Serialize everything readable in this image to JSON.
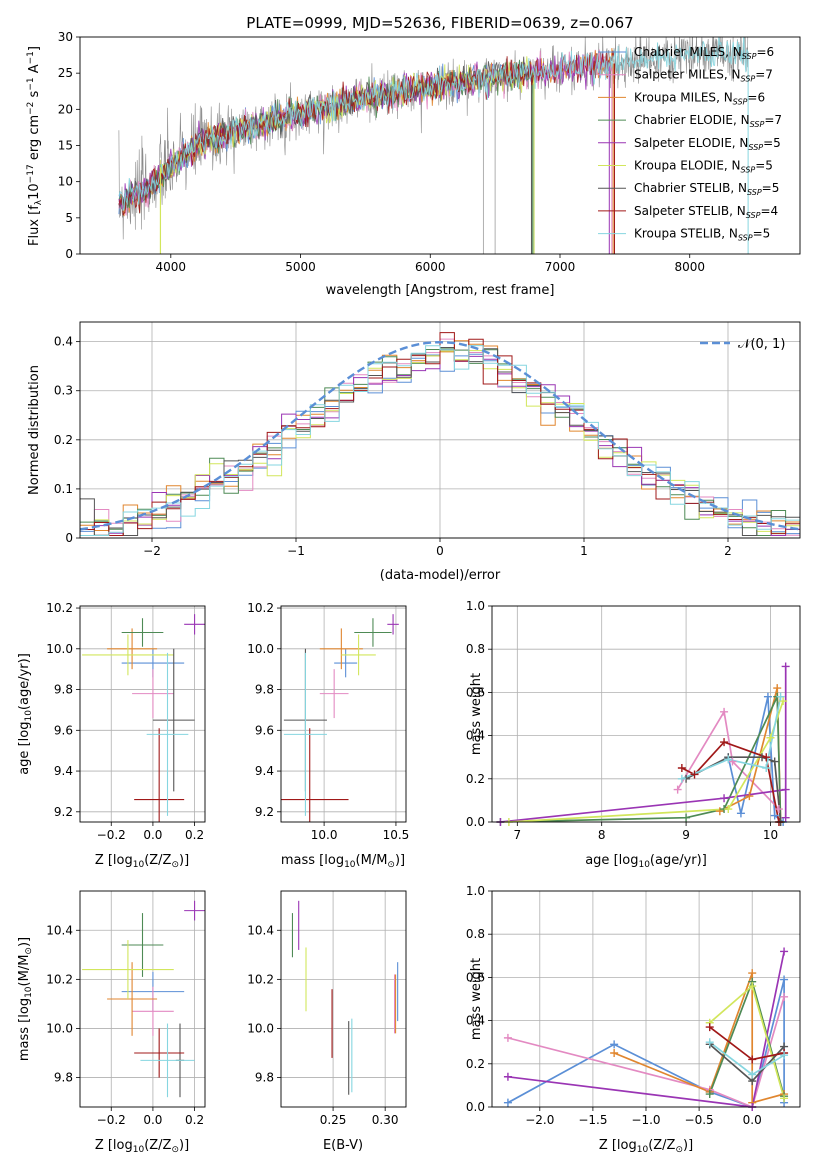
{
  "colors": {
    "chab_miles": "#5b8fd6",
    "salp_miles": "#e38ac2",
    "krou_miles": "#e0862f",
    "chab_elod": "#4e8a55",
    "salp_elod": "#9a35b4",
    "krou_elod": "#d2e65c",
    "chab_stel": "#555555",
    "salp_stel": "#a01818",
    "krou_stel": "#86d6e0",
    "grid": "#b0b0b0",
    "gauss": "#5b8fd6"
  },
  "chart_data": [
    {
      "id": "spectrum",
      "type": "line",
      "title": "PLATE=0999, MJD=52636, FIBERID=0639, z=0.067",
      "xlabel": "wavelength [Angstrom, rest frame]",
      "ylabel_parts": [
        "Flux [f",
        "λ",
        "10",
        "−17",
        " erg cm",
        "−2",
        " s",
        "−1",
        " A",
        "−1",
        "]"
      ],
      "xlim": [
        3300,
        8850
      ],
      "ylim": [
        0,
        30
      ],
      "xticks": [
        4000,
        5000,
        6000,
        7000,
        8000
      ],
      "yticks": [
        0,
        5,
        10,
        15,
        20,
        25,
        30
      ],
      "grid": false,
      "legend_position": "lower-right",
      "legend": [
        {
          "name": "Chabrier MILES",
          "nssp": "6",
          "color_key": "chab_miles"
        },
        {
          "name": "Salpeter MILES",
          "nssp": "7",
          "color_key": "salp_miles"
        },
        {
          "name": "Kroupa MILES",
          "nssp": "6",
          "color_key": "krou_miles"
        },
        {
          "name": "Chabrier ELODIE",
          "nssp": "7",
          "color_key": "chab_elod"
        },
        {
          "name": "Salpeter ELODIE",
          "nssp": "5",
          "color_key": "salp_elod"
        },
        {
          "name": "Kroupa ELODIE",
          "nssp": "5",
          "color_key": "krou_elod"
        },
        {
          "name": "Chabrier STELIB",
          "nssp": "5",
          "color_key": "chab_stel"
        },
        {
          "name": "Salpeter STELIB",
          "nssp": "4",
          "color_key": "salp_stel"
        },
        {
          "name": "Kroupa STELIB",
          "nssp": "5",
          "color_key": "krou_stel"
        }
      ],
      "continuum": {
        "x": [
          3600,
          3800,
          4000,
          4200,
          4500,
          5000,
          5500,
          6000,
          6500,
          7000,
          7500,
          8000,
          8450
        ],
        "y": [
          7,
          9,
          12,
          15,
          17,
          19.5,
          21.5,
          23,
          24.5,
          25.5,
          26.5,
          27.5,
          28
        ]
      },
      "model_ranges": [
        [
          3600,
          6800
        ],
        [
          3600,
          7400
        ],
        [
          3600,
          7410
        ],
        [
          3600,
          6790
        ],
        [
          3600,
          7380
        ],
        [
          3920,
          6800
        ],
        [
          3600,
          6780
        ],
        [
          3600,
          7420
        ],
        [
          3600,
          8450
        ]
      ]
    },
    {
      "id": "residuals",
      "type": "histogram",
      "xlabel": "(data-model)/error",
      "ylabel": "Normed distribution",
      "xlim": [
        -2.5,
        2.5
      ],
      "ylim": [
        0,
        0.44
      ],
      "xticks": [
        -2,
        -1,
        0,
        1,
        2
      ],
      "xtick_labels": [
        "−2",
        "−1",
        "0",
        "1",
        "2"
      ],
      "yticks": [
        0.0,
        0.1,
        0.2,
        0.3,
        0.4
      ],
      "grid": true,
      "legend_position": "upper-right",
      "gauss_label": "𝒩(0, 1)",
      "bin_width": 0.1
    },
    {
      "id": "age_vs_Z",
      "type": "scatter",
      "xlabel_parts": [
        "Z [log",
        "10",
        "(Z/Z",
        "⊙",
        ")]"
      ],
      "ylabel_parts": [
        "age  [log",
        "10",
        "(age/yr)]"
      ],
      "xlim": [
        -0.35,
        0.25
      ],
      "ylim": [
        9.15,
        10.21
      ],
      "xticks": [
        -0.2,
        0.0,
        0.2
      ],
      "xtick_labels": [
        "−0.2",
        "0.0",
        "0.2"
      ],
      "yticks": [
        9.2,
        9.4,
        9.6,
        9.8,
        10.0,
        10.2
      ],
      "ytick_labels": [
        "9.2",
        "9.4",
        "9.6",
        "9.8",
        "10.0",
        "10.2"
      ],
      "grid": true,
      "points": [
        {
          "color_key": "chab_miles",
          "x": 0.0,
          "dx": 0.15,
          "y": 9.93,
          "dy": 0.07
        },
        {
          "color_key": "salp_miles",
          "x": 0.0,
          "dx": 0.1,
          "y": 9.78,
          "dy": 0.12
        },
        {
          "color_key": "krou_miles",
          "x": -0.1,
          "dx": 0.12,
          "y": 10.0,
          "dy": 0.1
        },
        {
          "color_key": "chab_elod",
          "x": -0.05,
          "dx": 0.1,
          "y": 10.08,
          "dy": 0.07
        },
        {
          "color_key": "salp_elod",
          "x": 0.2,
          "dx": 0.05,
          "y": 10.12,
          "dy": 0.05
        },
        {
          "color_key": "krou_elod",
          "x": -0.12,
          "dx": 0.22,
          "y": 9.97,
          "dy": 0.1
        },
        {
          "color_key": "chab_stel",
          "x": 0.1,
          "dx": 0.1,
          "y": 9.65,
          "dy": 0.35
        },
        {
          "color_key": "salp_stel",
          "x": 0.03,
          "dx": 0.12,
          "y": 9.26,
          "dy": 0.35
        },
        {
          "color_key": "krou_stel",
          "x": 0.07,
          "dx": 0.1,
          "y": 9.58,
          "dy": 0.4
        }
      ]
    },
    {
      "id": "age_vs_mass",
      "type": "scatter",
      "xlabel_parts": [
        "mass [log",
        "10",
        "(M/M",
        "⊙",
        ")]"
      ],
      "xlim": [
        9.7,
        10.57
      ],
      "ylim": [
        9.15,
        10.21
      ],
      "xticks": [
        10.0,
        10.5
      ],
      "xtick_labels": [
        "10.0",
        "10.5"
      ],
      "yticks": [
        9.2,
        9.4,
        9.6,
        9.8,
        10.0,
        10.2
      ],
      "ytick_labels": [
        "9.2",
        "9.4",
        "9.6",
        "9.8",
        "10.0",
        "10.2"
      ],
      "grid": true,
      "points": [
        {
          "color_key": "chab_miles",
          "x": 10.15,
          "dx": 0.08,
          "y": 9.93,
          "dy": 0.07
        },
        {
          "color_key": "salp_miles",
          "x": 10.07,
          "dx": 0.1,
          "y": 9.78,
          "dy": 0.12
        },
        {
          "color_key": "krou_miles",
          "x": 10.12,
          "dx": 0.15,
          "y": 10.0,
          "dy": 0.1
        },
        {
          "color_key": "chab_elod",
          "x": 10.34,
          "dx": 0.13,
          "y": 10.08,
          "dy": 0.07
        },
        {
          "color_key": "salp_elod",
          "x": 10.48,
          "dx": 0.04,
          "y": 10.12,
          "dy": 0.05
        },
        {
          "color_key": "krou_elod",
          "x": 10.24,
          "dx": 0.12,
          "y": 9.97,
          "dy": 0.1
        },
        {
          "color_key": "chab_stel",
          "x": 9.87,
          "dx": 0.15,
          "y": 9.65,
          "dy": 0.35
        },
        {
          "color_key": "salp_stel",
          "x": 9.9,
          "dx": 0.27,
          "y": 9.26,
          "dy": 0.35
        },
        {
          "color_key": "krou_stel",
          "x": 9.87,
          "dx": 0.15,
          "y": 9.58,
          "dy": 0.4
        }
      ]
    },
    {
      "id": "weight_vs_age",
      "type": "line",
      "xlabel_parts": [
        "age  [log",
        "10",
        "(age/yr)]"
      ],
      "ylabel": "mass weight",
      "xlim": [
        6.7,
        10.35
      ],
      "ylim": [
        0,
        1
      ],
      "xticks": [
        7,
        8,
        9,
        10
      ],
      "yticks": [
        0.0,
        0.2,
        0.4,
        0.6,
        0.8,
        1.0
      ],
      "ytick_labels": [
        "0.0",
        "0.2",
        "0.4",
        "0.6",
        "0.8",
        "1.0"
      ],
      "grid": true,
      "series": [
        {
          "color_key": "chab_miles",
          "x": [
            9.5,
            9.65,
            9.97,
            10.05,
            10.15
          ],
          "y": [
            0.3,
            0.04,
            0.58,
            0.03,
            0.0
          ]
        },
        {
          "color_key": "salp_miles",
          "x": [
            8.9,
            9.45,
            9.55,
            10.1
          ],
          "y": [
            0.15,
            0.51,
            0.28,
            0.06
          ]
        },
        {
          "color_key": "krou_miles",
          "x": [
            9.4,
            9.75,
            10.08,
            10.12
          ],
          "y": [
            0.05,
            0.12,
            0.62,
            0.0
          ]
        },
        {
          "color_key": "chab_elod",
          "x": [
            6.8,
            9.0,
            9.45,
            10.08,
            10.12
          ],
          "y": [
            0.0,
            0.02,
            0.06,
            0.58,
            0.0
          ]
        },
        {
          "color_key": "salp_elod",
          "x": [
            6.8,
            9.45,
            10.18,
            10.18,
            10.18
          ],
          "y": [
            0.0,
            0.11,
            0.15,
            0.72,
            0.02
          ]
        },
        {
          "color_key": "krou_elod",
          "x": [
            6.9,
            9.5,
            10.0,
            10.15
          ],
          "y": [
            0.0,
            0.06,
            0.39,
            0.56
          ]
        },
        {
          "color_key": "chab_stel",
          "x": [
            9.0,
            9.5,
            9.9,
            10.05,
            10.12
          ],
          "y": [
            0.2,
            0.3,
            0.3,
            0.28,
            0.0
          ]
        },
        {
          "color_key": "salp_stel",
          "x": [
            8.95,
            9.1,
            9.45,
            9.95,
            10.1
          ],
          "y": [
            0.25,
            0.22,
            0.37,
            0.3,
            0.0
          ]
        },
        {
          "color_key": "krou_stel",
          "x": [
            8.95,
            9.5,
            9.95,
            10.12
          ],
          "y": [
            0.2,
            0.29,
            0.25,
            0.58
          ]
        }
      ]
    },
    {
      "id": "mass_vs_Z",
      "type": "scatter",
      "xlabel_parts": [
        "Z [log",
        "10",
        "(Z/Z",
        "⊙",
        ")]"
      ],
      "ylabel_parts": [
        "mass [log",
        "10",
        "(M/M",
        "⊙",
        ")]"
      ],
      "xlim": [
        -0.35,
        0.25
      ],
      "ylim": [
        9.68,
        10.56
      ],
      "xticks": [
        -0.2,
        0.0,
        0.2
      ],
      "xtick_labels": [
        "−0.2",
        "0.0",
        "0.2"
      ],
      "yticks": [
        9.8,
        10.0,
        10.2,
        10.4
      ],
      "ytick_labels": [
        "9.8",
        "10.0",
        "10.2",
        "10.4"
      ],
      "grid": true,
      "points": [
        {
          "color_key": "chab_miles",
          "x": 0.0,
          "dx": 0.15,
          "y": 10.15,
          "dy": 0.08
        },
        {
          "color_key": "salp_miles",
          "x": 0.0,
          "dx": 0.1,
          "y": 10.07,
          "dy": 0.1
        },
        {
          "color_key": "krou_miles",
          "x": -0.1,
          "dx": 0.12,
          "y": 10.12,
          "dy": 0.15
        },
        {
          "color_key": "chab_elod",
          "x": -0.05,
          "dx": 0.1,
          "y": 10.34,
          "dy": 0.13
        },
        {
          "color_key": "salp_elod",
          "x": 0.2,
          "dx": 0.05,
          "y": 10.48,
          "dy": 0.04
        },
        {
          "color_key": "krou_elod",
          "x": -0.12,
          "dx": 0.22,
          "y": 10.24,
          "dy": 0.12
        },
        {
          "color_key": "chab_stel",
          "x": 0.13,
          "dx": 0.02,
          "y": 9.87,
          "dy": 0.15
        },
        {
          "color_key": "salp_stel",
          "x": 0.03,
          "dx": 0.12,
          "y": 9.9,
          "dy": 0.1
        },
        {
          "color_key": "krou_stel",
          "x": 0.07,
          "dx": 0.13,
          "y": 9.87,
          "dy": 0.15
        }
      ]
    },
    {
      "id": "mass_vs_ebv",
      "type": "scatter",
      "xlabel": "E(B-V)",
      "xlim": [
        0.2,
        0.32
      ],
      "ylim": [
        9.68,
        10.56
      ],
      "xticks": [
        0.25,
        0.3
      ],
      "xtick_labels": [
        "0.25",
        "0.30"
      ],
      "yticks": [
        9.8,
        10.0,
        10.2,
        10.4
      ],
      "ytick_labels": [
        "9.8",
        "10.0",
        "10.2",
        "10.4"
      ],
      "grid": true,
      "points": [
        {
          "color_key": "chab_miles",
          "x": 0.312,
          "dx": 0,
          "y": 10.15,
          "dy": 0.12
        },
        {
          "color_key": "salp_miles",
          "x": 0.309,
          "dx": 0,
          "y": 10.1,
          "dy": 0.12
        },
        {
          "color_key": "krou_miles",
          "x": 0.31,
          "dx": 0,
          "y": 10.1,
          "dy": 0.12
        },
        {
          "color_key": "chab_elod",
          "x": 0.211,
          "dx": 0,
          "y": 10.38,
          "dy": 0.09
        },
        {
          "color_key": "salp_elod",
          "x": 0.217,
          "dx": 0,
          "y": 10.42,
          "dy": 0.1
        },
        {
          "color_key": "krou_elod",
          "x": 0.224,
          "dx": 0,
          "y": 10.2,
          "dy": 0.13
        },
        {
          "color_key": "chab_stel",
          "x": 0.265,
          "dx": 0,
          "y": 9.88,
          "dy": 0.15
        },
        {
          "color_key": "salp_stel",
          "x": 0.249,
          "dx": 0,
          "y": 10.02,
          "dy": 0.14
        },
        {
          "color_key": "krou_stel",
          "x": 0.268,
          "dx": 0,
          "y": 9.89,
          "dy": 0.15
        }
      ]
    },
    {
      "id": "weight_vs_Z",
      "type": "line",
      "xlabel_parts": [
        "Z [log",
        "10",
        "(Z/Z",
        "⊙",
        ")]"
      ],
      "ylabel": "mass weight",
      "xlim": [
        -2.45,
        0.45
      ],
      "ylim": [
        0,
        1
      ],
      "xticks": [
        -2.0,
        -1.5,
        -1.0,
        -0.5,
        0.0
      ],
      "xtick_labels": [
        "−2.0",
        "−1.5",
        "−1.0",
        "−0.5",
        "0.0"
      ],
      "yticks": [
        0.0,
        0.2,
        0.4,
        0.6,
        0.8,
        1.0
      ],
      "ytick_labels": [
        "0.0",
        "0.2",
        "0.4",
        "0.6",
        "0.8",
        "1.0"
      ],
      "grid": true,
      "series": [
        {
          "color_key": "chab_miles",
          "x": [
            -2.3,
            -1.3,
            -0.4,
            0.0,
            0.3,
            0.3
          ],
          "y": [
            0.02,
            0.29,
            0.07,
            0.0,
            0.59,
            0.02
          ]
        },
        {
          "color_key": "salp_miles",
          "x": [
            -2.3,
            -0.4,
            0.0,
            0.3
          ],
          "y": [
            0.32,
            0.08,
            0.0,
            0.51
          ]
        },
        {
          "color_key": "krou_miles",
          "x": [
            -1.3,
            -0.4,
            0.0,
            0.0,
            0.3
          ],
          "y": [
            0.25,
            0.07,
            0.62,
            0.02,
            0.06
          ]
        },
        {
          "color_key": "chab_elod",
          "x": [
            -0.4,
            0.0,
            0.3
          ],
          "y": [
            0.06,
            0.58,
            0.05
          ]
        },
        {
          "color_key": "salp_elod",
          "x": [
            -2.3,
            0.0,
            0.3
          ],
          "y": [
            0.14,
            0.0,
            0.72
          ]
        },
        {
          "color_key": "krou_elod",
          "x": [
            -0.4,
            0.0,
            0.3
          ],
          "y": [
            0.39,
            0.56,
            0.04
          ]
        },
        {
          "color_key": "chab_stel",
          "x": [
            -0.4,
            0.0,
            0.3
          ],
          "y": [
            0.29,
            0.12,
            0.28
          ]
        },
        {
          "color_key": "salp_stel",
          "x": [
            -0.4,
            0.0,
            0.3
          ],
          "y": [
            0.37,
            0.22,
            0.25
          ]
        },
        {
          "color_key": "krou_stel",
          "x": [
            -0.4,
            0.0,
            0.3
          ],
          "y": [
            0.3,
            0.15,
            0.24
          ]
        }
      ]
    }
  ]
}
